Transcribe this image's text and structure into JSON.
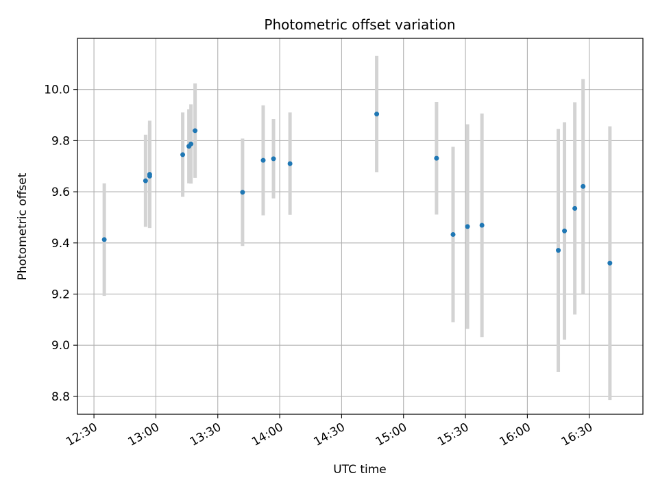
{
  "chart_data": {
    "type": "scatter",
    "title": "Photometric offset variation",
    "xlabel": "UTC time",
    "ylabel": "Photometric offset",
    "x_ticks": [
      "12:30",
      "13:00",
      "13:30",
      "14:00",
      "14:30",
      "15:00",
      "15:30",
      "16:00",
      "16:30"
    ],
    "y_ticks": [
      "8.8",
      "9.0",
      "9.2",
      "9.4",
      "9.6",
      "9.8",
      "10.0"
    ],
    "xlim": [
      "12:22",
      "16:56"
    ],
    "ylim": [
      8.73,
      10.2
    ],
    "grid": true,
    "colors": {
      "marker": "#1f77b4",
      "errorbar": "#d3d3d3",
      "grid": "#b0b0b0"
    },
    "series": [
      {
        "points": [
          {
            "x": "12:35",
            "y": 9.413,
            "yerr": 0.22
          },
          {
            "x": "12:55",
            "y": 9.643,
            "yerr": 0.18
          },
          {
            "x": "12:57",
            "y": 9.668,
            "yerr": 0.21
          },
          {
            "x": "12:57",
            "y": 9.661,
            "yerr": 0.2
          },
          {
            "x": "13:13",
            "y": 9.745,
            "yerr": 0.165
          },
          {
            "x": "13:16",
            "y": 9.778,
            "yerr": 0.145
          },
          {
            "x": "13:17",
            "y": 9.787,
            "yerr": 0.155
          },
          {
            "x": "13:19",
            "y": 9.839,
            "yerr": 0.185
          },
          {
            "x": "13:42",
            "y": 9.598,
            "yerr": 0.21
          },
          {
            "x": "13:52",
            "y": 9.723,
            "yerr": 0.215
          },
          {
            "x": "13:57",
            "y": 9.729,
            "yerr": 0.155
          },
          {
            "x": "14:05",
            "y": 9.71,
            "yerr": 0.2
          },
          {
            "x": "14:47",
            "y": 9.904,
            "yerr": 0.227
          },
          {
            "x": "15:16",
            "y": 9.731,
            "yerr": 0.22
          },
          {
            "x": "15:24",
            "y": 9.433,
            "yerr": 0.343
          },
          {
            "x": "15:31",
            "y": 9.464,
            "yerr": 0.4
          },
          {
            "x": "15:38",
            "y": 9.469,
            "yerr": 0.437
          },
          {
            "x": "16:15",
            "y": 9.371,
            "yerr": 0.475
          },
          {
            "x": "16:18",
            "y": 9.447,
            "yerr": 0.425
          },
          {
            "x": "16:23",
            "y": 9.535,
            "yerr": 0.415
          },
          {
            "x": "16:27",
            "y": 9.621,
            "yerr": 0.42
          },
          {
            "x": "16:40",
            "y": 9.321,
            "yerr": 0.535
          }
        ]
      }
    ]
  }
}
